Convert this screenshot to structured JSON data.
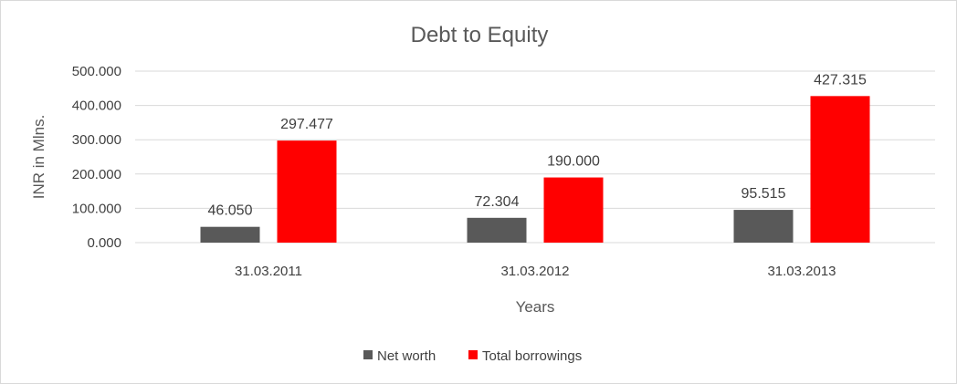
{
  "chart_data": {
    "type": "bar",
    "title": "Debt to Equity",
    "xlabel": "Years",
    "ylabel": "INR in Mlns.",
    "categories": [
      "31.03.2011",
      "31.03.2012",
      "31.03.2013"
    ],
    "series": [
      {
        "name": "Net worth",
        "color": "#595959",
        "values": [
          46.05,
          72.304,
          95.515
        ],
        "labels": [
          "46.050",
          "72.304",
          "95.515"
        ]
      },
      {
        "name": "Total borrowings",
        "color": "#ff0000",
        "values": [
          297.477,
          190.0,
          427.315
        ],
        "labels": [
          "297.477",
          "190.000",
          "427.315"
        ]
      }
    ],
    "ylim": [
      0,
      500
    ],
    "yticks": [
      0,
      100,
      200,
      300,
      400,
      500
    ],
    "ytick_labels": [
      "0.000",
      "100.000",
      "200.000",
      "300.000",
      "400.000",
      "500.000"
    ],
    "grid": true,
    "legend": "bottom"
  }
}
